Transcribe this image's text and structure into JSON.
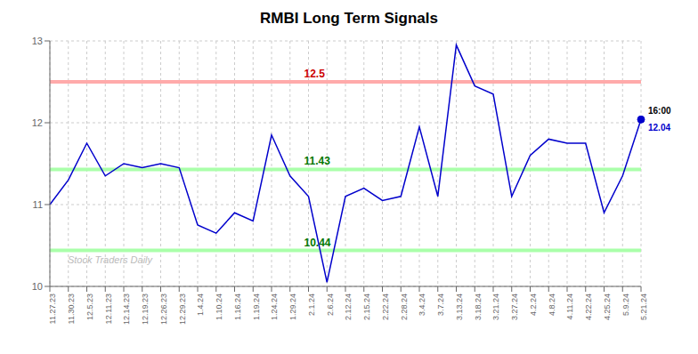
{
  "chart_data": {
    "type": "line",
    "title": "RMBI Long Term Signals",
    "categories": [
      "11.27.23",
      "11.30.23",
      "12.5.23",
      "12.11.23",
      "12.14.23",
      "12.19.23",
      "12.26.23",
      "12.29.23",
      "1.4.24",
      "1.10.24",
      "1.16.24",
      "1.19.24",
      "1.24.24",
      "1.29.24",
      "2.1.24",
      "2.6.24",
      "2.12.24",
      "2.15.24",
      "2.22.24",
      "2.28.24",
      "3.4.24",
      "3.7.24",
      "3.13.24",
      "3.18.24",
      "3.21.24",
      "3.27.24",
      "4.2.24",
      "4.8.24",
      "4.11.24",
      "4.22.24",
      "4.25.24",
      "5.9.24",
      "5.21.24"
    ],
    "values": [
      11.0,
      11.3,
      11.75,
      11.35,
      11.5,
      11.45,
      11.5,
      11.45,
      10.75,
      10.65,
      10.9,
      10.8,
      11.85,
      11.35,
      11.1,
      10.05,
      11.1,
      11.2,
      11.05,
      11.1,
      11.95,
      11.1,
      12.95,
      12.45,
      12.35,
      11.1,
      11.6,
      11.8,
      11.75,
      11.75,
      10.9,
      11.35,
      12.04
    ],
    "color": "#0000cc",
    "marker": "circle",
    "ylim": [
      10.0,
      13.0
    ],
    "yticks": [
      10,
      11,
      12,
      13
    ],
    "grid": true,
    "hlines": [
      {
        "value": 12.5,
        "label": "12.5",
        "color": "#ffaaaa",
        "label_color": "#cc0000"
      },
      {
        "value": 11.43,
        "label": "11.43",
        "color": "#aaffaa",
        "label_color": "#007700"
      },
      {
        "value": 10.44,
        "label": "10.44",
        "color": "#aaffaa",
        "label_color": "#007700"
      }
    ],
    "annotations": [
      {
        "text": "16:00",
        "color": "#000000"
      },
      {
        "text": "12.04",
        "color": "#0000cc"
      }
    ],
    "watermark": {
      "text": "Stock Traders Daily",
      "color": "#bbbbbb"
    }
  }
}
